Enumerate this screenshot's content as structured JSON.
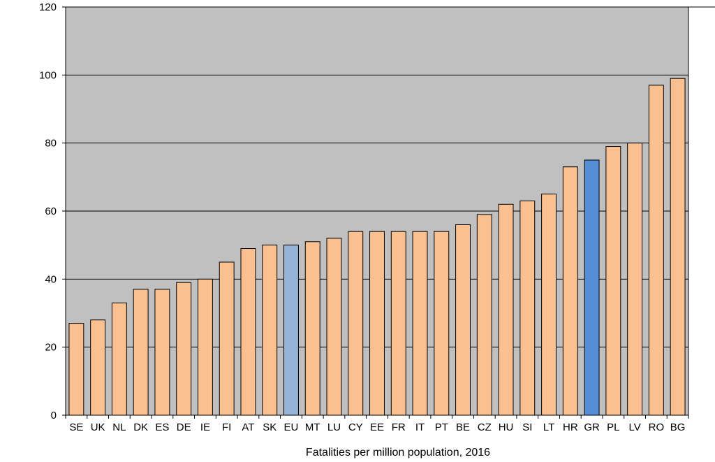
{
  "chart_data": {
    "type": "bar",
    "title": "",
    "xlabel": "Fatalities per million population, 2016",
    "ylabel": "",
    "ylim": [
      0,
      120
    ],
    "yticks": [
      0,
      20,
      40,
      60,
      80,
      100,
      120
    ],
    "grid": true,
    "legend": "none",
    "categories": [
      "SE",
      "UK",
      "NL",
      "DK",
      "ES",
      "DE",
      "IE",
      "FI",
      "AT",
      "SK",
      "EU",
      "MT",
      "LU",
      "CY",
      "EE",
      "FR",
      "IT",
      "PT",
      "BE",
      "CZ",
      "HU",
      "SI",
      "LT",
      "HR",
      "GR",
      "PL",
      "LV",
      "RO",
      "BG"
    ],
    "values": [
      27,
      28,
      33,
      37,
      37,
      39,
      40,
      45,
      49,
      50,
      50,
      51,
      52,
      54,
      54,
      54,
      54,
      54,
      56,
      59,
      62,
      63,
      65,
      73,
      75,
      79,
      80,
      97,
      99
    ],
    "colors": {
      "default": "#FAC090",
      "highlight": {
        "EU": "#95B3D7",
        "GR": "#558ED5"
      },
      "plot_background": "#C0C0C0",
      "gridline": "#000000"
    }
  }
}
